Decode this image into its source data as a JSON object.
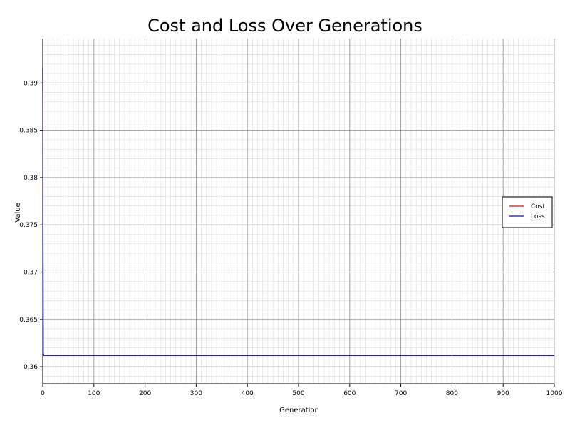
{
  "chart_data": {
    "type": "line",
    "title": "Cost and Loss Over Generations",
    "xlabel": "Generation",
    "ylabel": "Value",
    "xlim": [
      0,
      1000
    ],
    "ylim": [
      0.3582,
      0.3947
    ],
    "xticks": [
      0,
      100,
      200,
      300,
      400,
      500,
      600,
      700,
      800,
      900,
      1000
    ],
    "yticks": [
      0.36,
      0.365,
      0.37,
      0.375,
      0.38,
      0.385,
      0.39
    ],
    "ytick_labels": [
      "0.36",
      "0.365",
      "0.37",
      "0.375",
      "0.38",
      "0.385",
      "0.39"
    ],
    "grid": true,
    "minor_grid": true,
    "legend_position": "right",
    "series": [
      {
        "name": "Cost",
        "color": "#b22222",
        "x": [
          0,
          1,
          2,
          1000
        ],
        "y": [
          0.3916,
          0.3615,
          0.3612,
          0.3612
        ]
      },
      {
        "name": "Loss",
        "color": "#1010b0",
        "x": [
          0,
          1,
          2,
          1000
        ],
        "y": [
          0.3916,
          0.3615,
          0.3612,
          0.3612
        ]
      }
    ]
  }
}
